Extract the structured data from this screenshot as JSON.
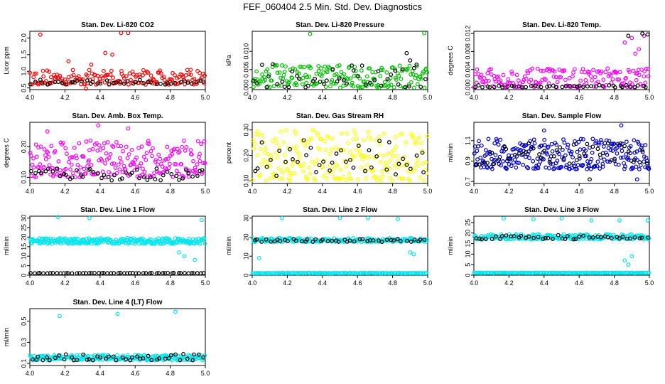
{
  "title": "FEF_060404  2.5 Min. Std. Dev. Diagnostics",
  "chart_data": [
    {
      "type": "scatter",
      "title": "Stan. Dev. Li-820 CO2",
      "ylabel": "Licor ppm",
      "xlim": [
        4.0,
        5.0
      ],
      "ylim": [
        0.45,
        2.2
      ],
      "xticks": [
        "4.0",
        "4.2",
        "4.4",
        "4.6",
        "4.8",
        "5.0"
      ],
      "yticks": [
        "0.5",
        "1.0",
        "1.5",
        "2.0"
      ],
      "series": [
        {
          "color": "#ff0000",
          "range": [
            0.6,
            1.05
          ],
          "n": 170,
          "outliers": [
            [
              4.06,
              2.1
            ],
            [
              4.52,
              2.15
            ],
            [
              4.56,
              2.15
            ],
            [
              4.43,
              1.55
            ],
            [
              4.47,
              1.5
            ],
            [
              4.22,
              1.3
            ],
            [
              4.35,
              1.2
            ],
            [
              4.32,
              0.48
            ]
          ]
        },
        {
          "color": "#000000",
          "range": [
            0.6,
            0.75
          ],
          "n": 45,
          "outliers": []
        }
      ]
    },
    {
      "type": "scatter",
      "title": "Stan. Dev. Li-820 Pressure",
      "ylabel": "kPa",
      "xlim": [
        4.0,
        5.0
      ],
      "ylim": [
        -0.0005,
        0.0155
      ],
      "xticks": [
        "4.0",
        "4.2",
        "4.4",
        "4.6",
        "4.8",
        "5.0"
      ],
      "yticks": [
        "0.000",
        "0.005",
        "0.010"
      ],
      "series": [
        {
          "color": "#00c000",
          "range": [
            0.0,
            0.0065
          ],
          "n": 190,
          "outliers": [
            [
              4.33,
              0.0148
            ],
            [
              4.98,
              0.015
            ]
          ]
        },
        {
          "color": "#000000",
          "range": [
            0.0,
            0.0065
          ],
          "n": 45,
          "outliers": [
            [
              4.88,
              0.0095
            ],
            [
              4.9,
              0.0075
            ]
          ]
        }
      ]
    },
    {
      "type": "scatter",
      "title": "Stan. Dev. Li-820 Temp.",
      "ylabel": "degrees C",
      "xlim": [
        4.0,
        5.0
      ],
      "ylim": [
        -0.0005,
        0.0125
      ],
      "xticks": [
        "4.0",
        "4.2",
        "4.4",
        "4.6",
        "4.8",
        "5.0"
      ],
      "yticks": [
        "0.000",
        "0.004",
        "0.008",
        "0.012"
      ],
      "series": [
        {
          "color": "#ff00ff",
          "range": [
            0.0,
            0.0042
          ],
          "n": 170,
          "outliers": [
            [
              4.86,
              0.01
            ],
            [
              4.9,
              0.011
            ],
            [
              4.94,
              0.0085
            ],
            [
              4.97,
              0.0115
            ],
            [
              4.92,
              0.0075
            ]
          ]
        },
        {
          "color": "#000000",
          "range": [
            0.0,
            0.0005
          ],
          "n": 45,
          "outliers": [
            [
              4.96,
              0.012
            ],
            [
              4.99,
              0.0118
            ],
            [
              4.88,
              0.0115
            ]
          ]
        }
      ]
    },
    {
      "type": "scatter",
      "title": "Stan. Dev. Amb. Box Temp.",
      "ylabel": "degrees C",
      "xlim": [
        4.0,
        5.0
      ],
      "ylim": [
        0.08,
        0.28
      ],
      "xticks": [
        "4.0",
        "4.2",
        "4.4",
        "4.6",
        "4.8",
        "5.0"
      ],
      "yticks": [
        "0.10",
        "0.20"
      ],
      "series": [
        {
          "color": "#ff00ff",
          "range": [
            0.1,
            0.22
          ],
          "n": 230,
          "outliers": [
            [
              4.39,
              0.27
            ],
            [
              4.56,
              0.26
            ],
            [
              4.1,
              0.25
            ]
          ]
        },
        {
          "color": "#000000",
          "range": [
            0.09,
            0.13
          ],
          "n": 50,
          "outliers": []
        }
      ]
    },
    {
      "type": "scatter",
      "title": "Stan. Dev. Gas Stream RH",
      "ylabel": "percent",
      "xlim": [
        4.0,
        5.0
      ],
      "ylim": [
        0.09,
        0.33
      ],
      "xticks": [
        "4.0",
        "4.2",
        "4.4",
        "4.6",
        "4.8",
        "5.0"
      ],
      "yticks": [
        "0.10",
        "0.20",
        "0.30"
      ],
      "series": [
        {
          "color": "#ffff00",
          "range": [
            0.1,
            0.3
          ],
          "n": 230,
          "outliers": []
        },
        {
          "color": "#000000",
          "range": [
            0.12,
            0.26
          ],
          "n": 40,
          "outliers": []
        }
      ]
    },
    {
      "type": "scatter",
      "title": "Stan. Dev. Sample Flow",
      "ylabel": "ml/min",
      "xlim": [
        4.0,
        5.0
      ],
      "ylim": [
        0.68,
        1.28
      ],
      "xticks": [
        "4.0",
        "4.2",
        "4.4",
        "4.6",
        "4.8",
        "5.0"
      ],
      "yticks": [
        "0.7",
        "0.9",
        "1.1"
      ],
      "series": [
        {
          "color": "#0000cc",
          "range": [
            0.82,
            1.12
          ],
          "n": 260,
          "outliers": [
            [
              4.84,
              1.25
            ],
            [
              4.4,
              1.2
            ],
            [
              4.93,
              0.72
            ]
          ]
        },
        {
          "color": "#000000",
          "range": [
            0.86,
            1.08
          ],
          "n": 45,
          "outliers": [
            [
              4.66,
              0.72
            ]
          ]
        }
      ]
    },
    {
      "type": "scatter",
      "title": "Stan. Dev. Line 1 Flow",
      "ylabel": "ml/min",
      "xlim": [
        4.0,
        5.0
      ],
      "ylim": [
        0,
        31
      ],
      "xticks": [
        "4.0",
        "4.2",
        "4.4",
        "4.6",
        "4.8",
        "5.0"
      ],
      "yticks": [
        "0",
        "5",
        "10",
        "15",
        "20",
        "25",
        "30"
      ],
      "series": [
        {
          "color": "#00e5ee",
          "range": [
            16.5,
            19.5
          ],
          "n": 260,
          "outliers": [
            [
              4.16,
              30.5
            ],
            [
              4.34,
              30
            ],
            [
              4.98,
              29
            ],
            [
              4.85,
              12
            ],
            [
              4.88,
              10
            ],
            [
              4.94,
              8
            ]
          ]
        },
        {
          "color": "#000000",
          "range": [
            1.0,
            1.2
          ],
          "n": 55,
          "outliers": []
        }
      ]
    },
    {
      "type": "scatter",
      "title": "Stan. Dev. Line 2 Flow",
      "ylabel": "ml/min",
      "xlim": [
        4.0,
        5.0
      ],
      "ylim": [
        0,
        31
      ],
      "xticks": [
        "4.0",
        "4.2",
        "4.4",
        "4.6",
        "4.8",
        "5.0"
      ],
      "yticks": [
        "0",
        "10",
        "20",
        "30"
      ],
      "series": [
        {
          "color": "#00e5ee",
          "range": [
            17.5,
            19.5
          ],
          "n": 200,
          "outliers": [
            [
              4.17,
              30
            ],
            [
              4.5,
              30
            ],
            [
              4.66,
              30
            ],
            [
              4.83,
              29.5
            ],
            [
              4.04,
              9
            ],
            [
              4.9,
              12
            ],
            [
              4.92,
              11
            ]
          ]
        },
        {
          "color": "#00e5ee",
          "range": [
            1.0,
            1.2
          ],
          "n": 140,
          "outliers": []
        },
        {
          "color": "#000000",
          "range": [
            17.5,
            19.0
          ],
          "n": 45,
          "outliers": []
        }
      ]
    },
    {
      "type": "scatter",
      "title": "Stan. Dev. Line 3 Flow",
      "ylabel": "ml/min",
      "xlim": [
        4.0,
        5.0
      ],
      "ylim": [
        0,
        28
      ],
      "xticks": [
        "4.0",
        "4.2",
        "4.4",
        "4.6",
        "4.8",
        "5.0"
      ],
      "yticks": [
        "0",
        "5",
        "10",
        "15",
        "20",
        "25"
      ],
      "series": [
        {
          "color": "#00e5ee",
          "range": [
            17.0,
            19.5
          ],
          "n": 200,
          "outliers": [
            [
              4.17,
              27
            ],
            [
              4.34,
              26.5
            ],
            [
              4.5,
              27
            ],
            [
              4.67,
              26
            ],
            [
              4.83,
              26
            ],
            [
              4.99,
              26
            ],
            [
              4.86,
              7
            ],
            [
              4.9,
              9
            ],
            [
              4.88,
              5
            ]
          ]
        },
        {
          "color": "#00e5ee",
          "range": [
            1.0,
            1.2
          ],
          "n": 140,
          "outliers": []
        },
        {
          "color": "#000000",
          "range": [
            17.0,
            19.0
          ],
          "n": 45,
          "outliers": []
        }
      ]
    },
    {
      "type": "scatter",
      "title": "Stan. Dev. Line 4 (LT) Flow",
      "ylabel": "ml/min",
      "xlim": [
        4.0,
        5.0
      ],
      "ylim": [
        0.08,
        0.62
      ],
      "xticks": [
        "4.0",
        "4.2",
        "4.4",
        "4.6",
        "4.8",
        "5.0"
      ],
      "yticks": [
        "0.1",
        "0.3",
        "0.5"
      ],
      "series": [
        {
          "color": "#00e5ee",
          "range": [
            0.13,
            0.18
          ],
          "n": 230,
          "outliers": [
            [
              4.17,
              0.55
            ],
            [
              4.5,
              0.57
            ],
            [
              4.83,
              0.59
            ]
          ]
        },
        {
          "color": "#000000",
          "range": [
            0.13,
            0.19
          ],
          "n": 45,
          "outliers": []
        }
      ]
    }
  ]
}
